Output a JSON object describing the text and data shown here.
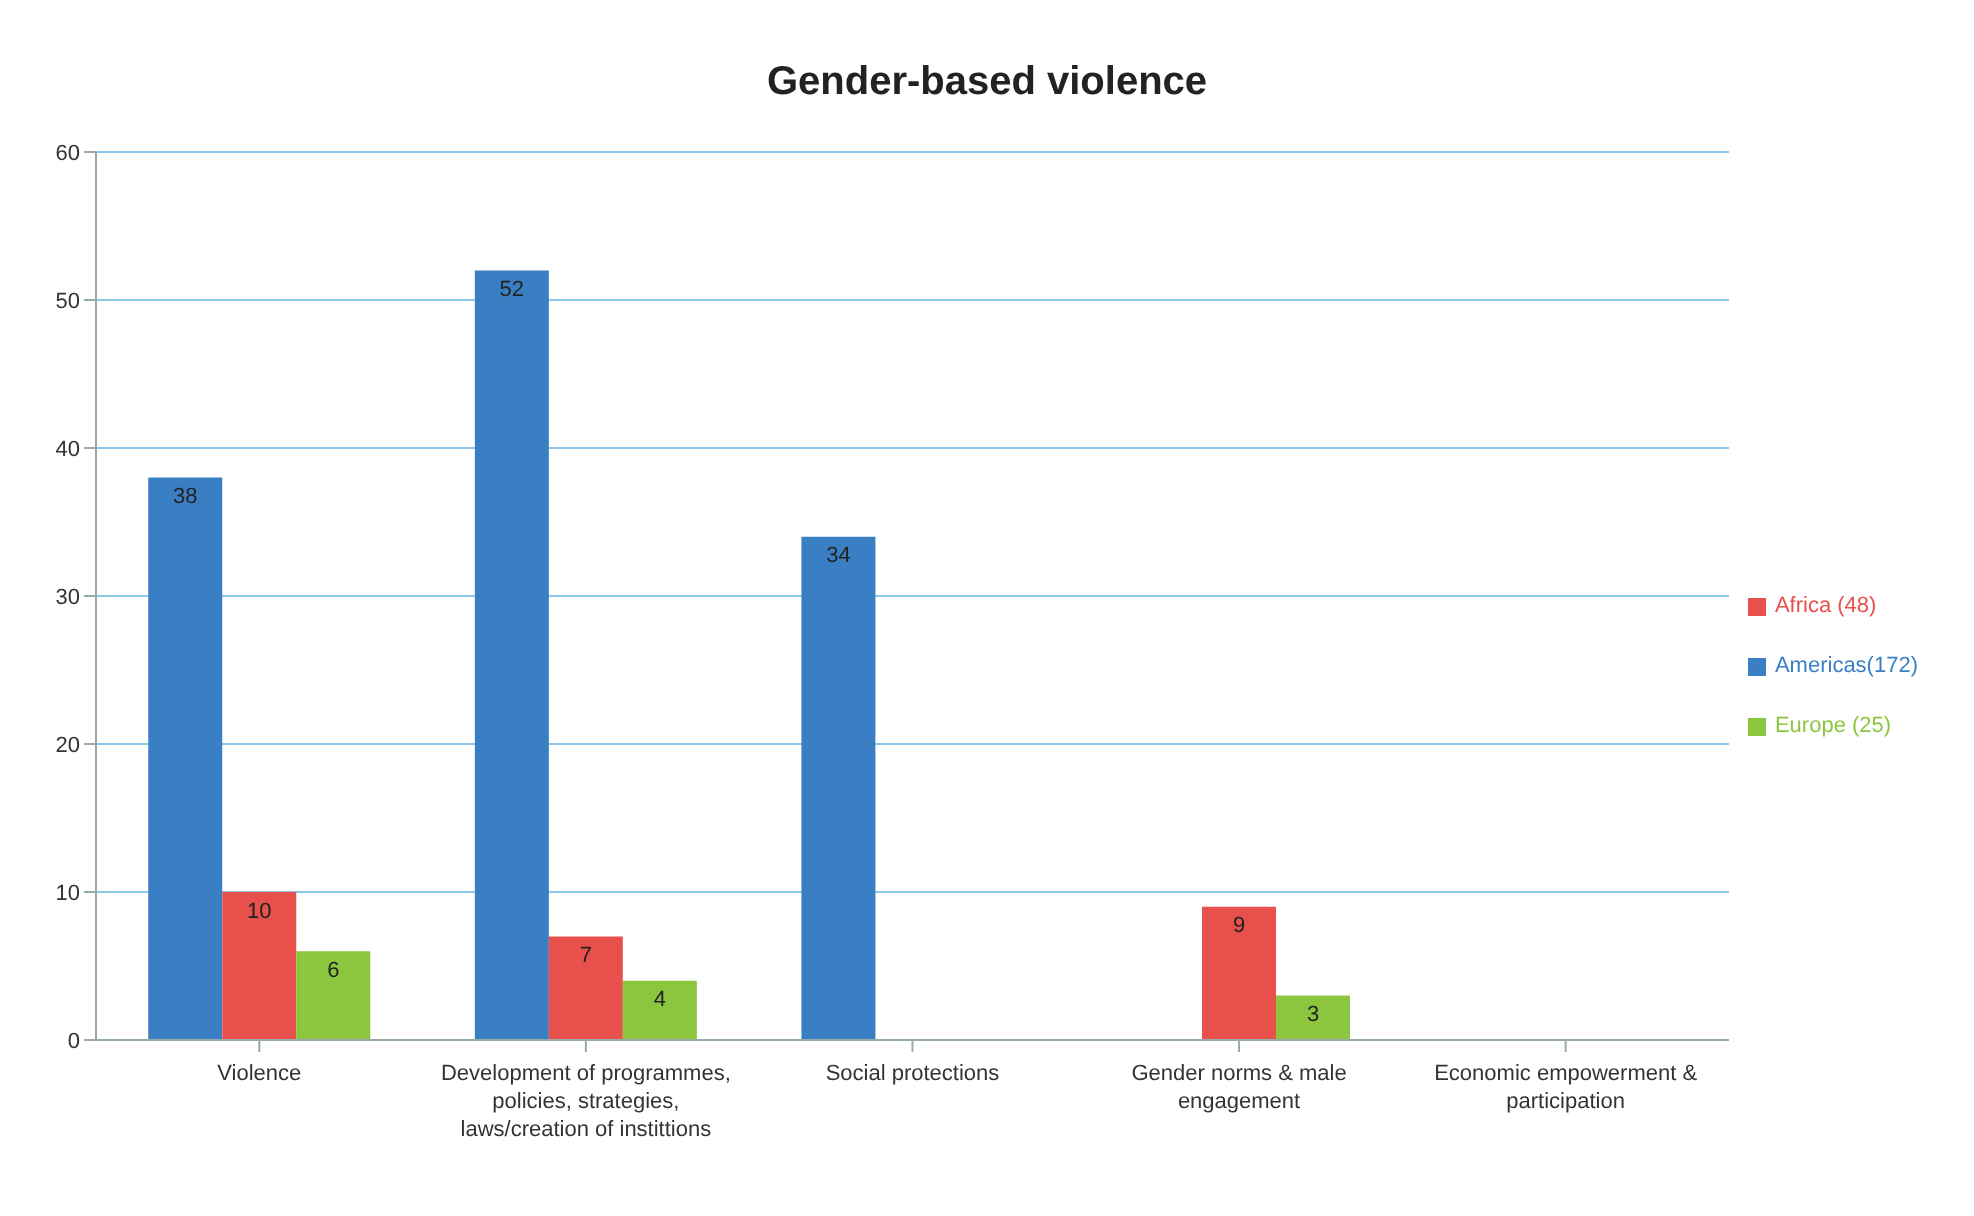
{
  "chart_data": {
    "type": "bar",
    "title": "Gender-based violence",
    "categories": [
      "Violence",
      "Development of programmes, policies, strategies, laws/creation of instittions",
      "Social protections",
      "Gender norms & male engagement",
      "Economic empowerment & participation"
    ],
    "series": [
      {
        "name": "Americas(172)",
        "color": "#3a7fc4",
        "values": [
          38,
          52,
          34,
          null,
          null
        ]
      },
      {
        "name": "Africa (48)",
        "color": "#e8504c",
        "values": [
          10,
          7,
          null,
          9,
          null
        ]
      },
      {
        "name": "Europe (25)",
        "color": "#8cc63e",
        "values": [
          6,
          4,
          null,
          3,
          null
        ]
      }
    ],
    "ylim": [
      0,
      60
    ],
    "yticks": [
      0,
      10,
      20,
      30,
      40,
      50,
      60
    ],
    "grid": "y",
    "legend": "right",
    "data_labels": true
  }
}
